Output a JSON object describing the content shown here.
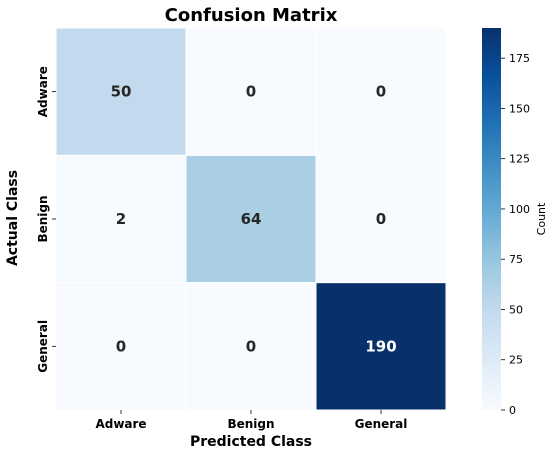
{
  "chart_data": {
    "type": "heatmap",
    "title": "Confusion Matrix",
    "xlabel": "Predicted Class",
    "ylabel": "Actual Class",
    "x_categories": [
      "Adware",
      "Benign",
      "General"
    ],
    "y_categories": [
      "Adware",
      "Benign",
      "General"
    ],
    "values": [
      [
        50,
        0,
        0
      ],
      [
        2,
        64,
        0
      ],
      [
        0,
        0,
        190
      ]
    ],
    "colorbar": {
      "label": "Count",
      "min": 0,
      "max": 190,
      "ticks": [
        "0",
        "25",
        "50",
        "75",
        "100",
        "125",
        "150",
        "175"
      ]
    },
    "colormap": {
      "name": "Blues",
      "low_color": "#f7fbff",
      "high_color": "#08306b"
    },
    "grid": false
  }
}
